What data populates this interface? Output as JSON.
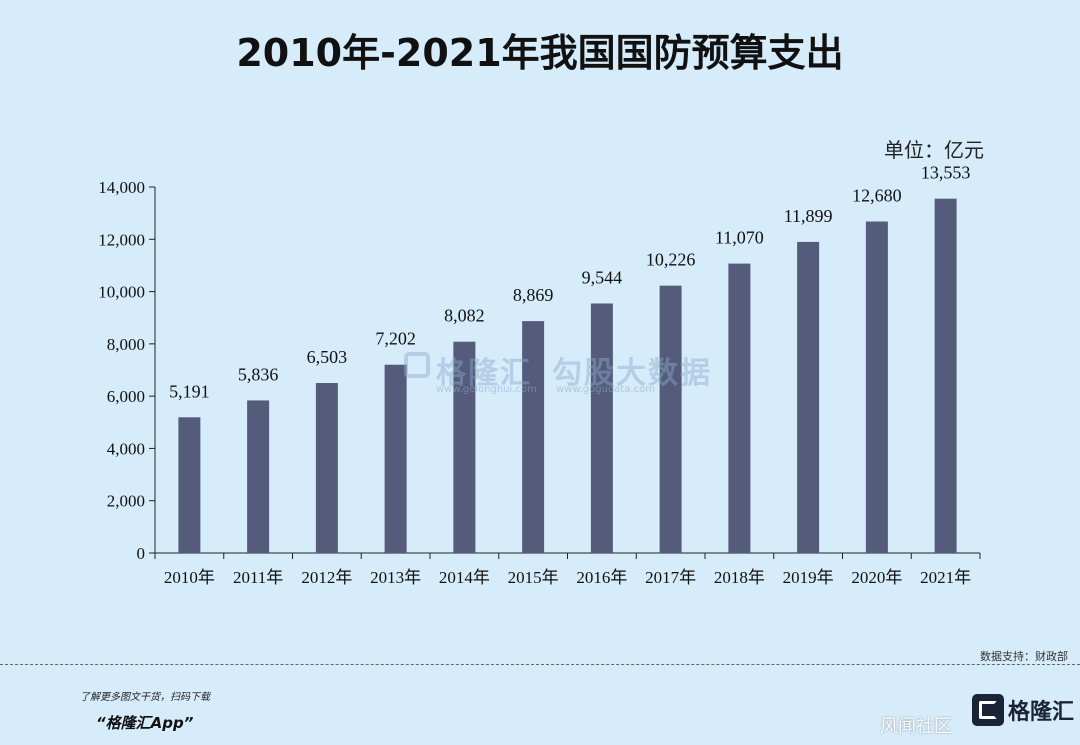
{
  "chart_data": {
    "type": "bar",
    "title": "2010年-2021年我国国防预算支出",
    "unit_label": "单位：亿元",
    "categories": [
      "2010年",
      "2011年",
      "2012年",
      "2013年",
      "2014年",
      "2015年",
      "2016年",
      "2017年",
      "2018年",
      "2019年",
      "2020年",
      "2021年"
    ],
    "values": [
      5191,
      5836,
      6503,
      7202,
      8082,
      8869,
      9544,
      10226,
      11070,
      11899,
      12680,
      13553
    ],
    "value_labels": [
      "5,191",
      "5,836",
      "6,503",
      "7,202",
      "8,082",
      "8,869",
      "9,544",
      "10,226",
      "11,070",
      "11,899",
      "12,680",
      "13,553"
    ],
    "yticks": [
      0,
      2000,
      4000,
      6000,
      8000,
      10000,
      12000,
      14000
    ],
    "ytick_labels": [
      "0",
      "2,000",
      "4,000",
      "6,000",
      "8,000",
      "10,000",
      "12,000",
      "14,000"
    ],
    "ylim": [
      0,
      14000
    ],
    "xlabel": "",
    "ylabel": "",
    "grid": false,
    "bar_color": "#555b7a"
  },
  "watermark": {
    "left_text": "格隆汇",
    "left_sub": "www.gelonghui.com",
    "right_text": "勾股大数据",
    "right_sub": "www.gogudata.com"
  },
  "footer": {
    "source": "数据支持：财政部",
    "promo": "了解更多图文干货，扫码下载",
    "app_name": "“格隆汇App”",
    "logo_text": "格隆汇",
    "bottom_watermark": "风闻社区"
  },
  "colors": {
    "background": "#d6ecfa",
    "bar": "#555b7a",
    "axis": "#222222"
  }
}
